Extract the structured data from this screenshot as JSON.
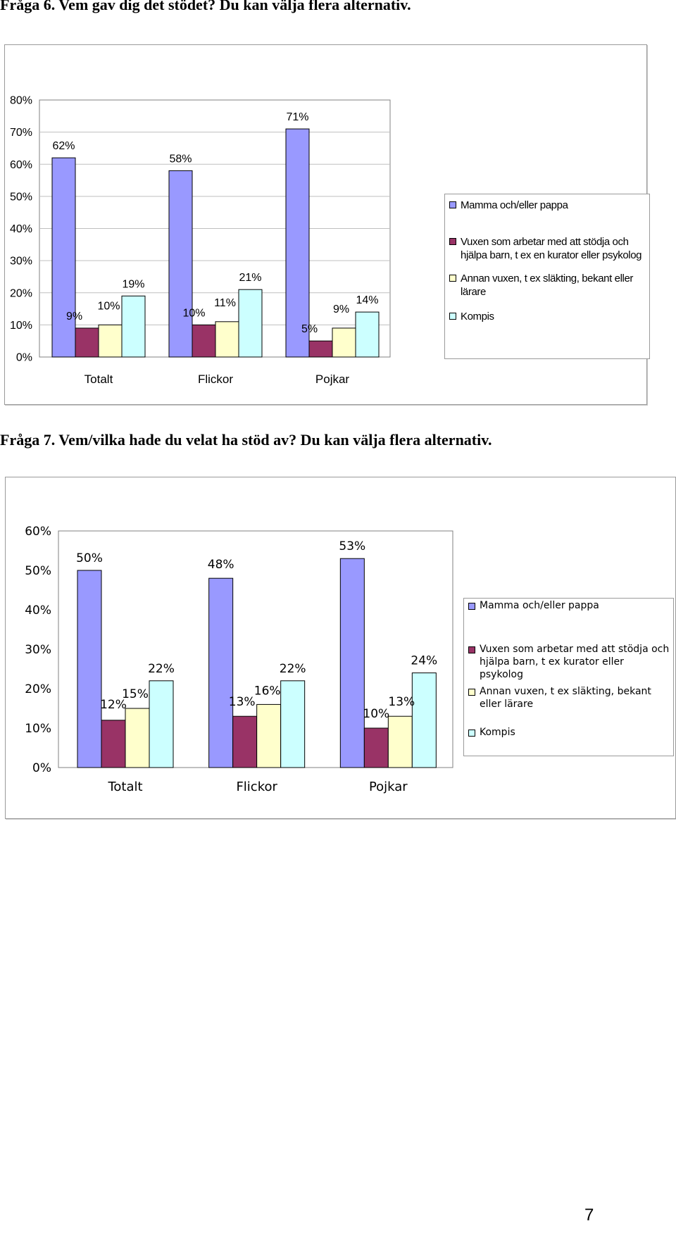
{
  "questions": [
    {
      "heading": "Fråga 6. Vem gav dig det stödet? Du kan välja flera alternativ."
    },
    {
      "heading": "Fråga 7. Vem/vilka hade du velat ha stöd av? Du kan välja flera alternativ."
    }
  ],
  "page_number": "7",
  "chart_data": [
    {
      "type": "bar",
      "categories": [
        "Totalt",
        "Flickor",
        "Pojkar"
      ],
      "ylim": [
        0,
        80
      ],
      "yticks": [
        "0%",
        "10%",
        "20%",
        "30%",
        "40%",
        "50%",
        "60%",
        "70%",
        "80%"
      ],
      "grid": true,
      "legend_position": "right",
      "series": [
        {
          "name": "Mamma och/eller pappa",
          "color": "#9999ff",
          "values": [
            62,
            58,
            71
          ],
          "labels": [
            "62%",
            "58%",
            "71%"
          ]
        },
        {
          "name": "Vuxen som arbetar med att stödja och hjälpa barn, t ex en kurator eller psykolog",
          "color": "#993366",
          "values": [
            9,
            10,
            5
          ],
          "labels": [
            "9%",
            "10%",
            "5%"
          ]
        },
        {
          "name": "Annan vuxen, t ex släkting, bekant eller lärare",
          "color": "#ffffcc",
          "values": [
            10,
            11,
            9
          ],
          "labels": [
            "10%",
            "11%",
            "9%"
          ]
        },
        {
          "name": "Kompis",
          "color": "#ccffff",
          "values": [
            19,
            21,
            14
          ],
          "labels": [
            "19%",
            "21%",
            "14%"
          ]
        }
      ]
    },
    {
      "type": "bar",
      "categories": [
        "Totalt",
        "Flickor",
        "Pojkar"
      ],
      "ylim": [
        0,
        60
      ],
      "yticks": [
        "0%",
        "10%",
        "20%",
        "30%",
        "40%",
        "50%",
        "60%"
      ],
      "grid": false,
      "legend_position": "right",
      "series": [
        {
          "name": "Mamma och/eller pappa",
          "color": "#9999ff",
          "values": [
            50,
            48,
            53
          ],
          "labels": [
            "50%",
            "48%",
            "53%"
          ]
        },
        {
          "name": "Vuxen som arbetar med att stödja och hjälpa barn, t ex kurator eller psykolog",
          "color": "#993366",
          "values": [
            12,
            13,
            10
          ],
          "labels": [
            "12%",
            "13%",
            "10%"
          ]
        },
        {
          "name": "Annan vuxen, t ex släkting, bekant eller lärare",
          "color": "#ffffcc",
          "values": [
            15,
            16,
            13
          ],
          "labels": [
            "15%",
            "16%",
            "13%"
          ]
        },
        {
          "name": "Kompis",
          "color": "#ccffff",
          "values": [
            22,
            22,
            24
          ],
          "labels": [
            "22%",
            "22%",
            "24%"
          ]
        }
      ]
    }
  ]
}
